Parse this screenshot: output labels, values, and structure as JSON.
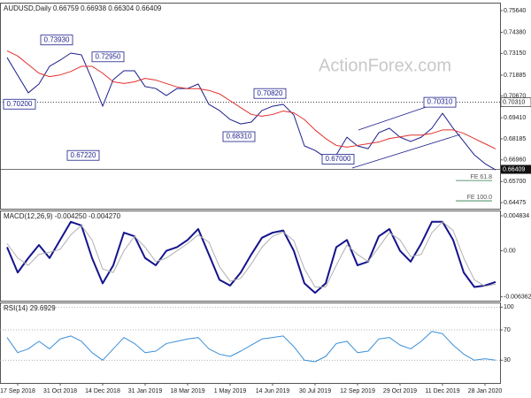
{
  "chart_data": [
    {
      "type": "line",
      "title": "AUDUSD,Daily  0.66759 0.66938 0.66304 0.66409",
      "watermark": "ActionForex.com",
      "series": [
        {
          "color": "#1c1f8a",
          "values": [
            0.7291,
            0.7188,
            0.7086,
            0.7137,
            0.724,
            0.7276,
            0.7317,
            0.7307,
            0.7163,
            0.7008,
            0.7163,
            0.7214,
            0.7214,
            0.7122,
            0.7111,
            0.707,
            0.7111,
            0.7111,
            0.7137,
            0.7019,
            0.6983,
            0.6931,
            0.6905,
            0.6916,
            0.6983,
            0.7008,
            0.7019,
            0.6957,
            0.6777,
            0.6751,
            0.671,
            0.6725,
            0.6828,
            0.6777,
            0.6761,
            0.6854,
            0.688,
            0.6828,
            0.6803,
            0.6828,
            0.688,
            0.6967,
            0.688,
            0.6803,
            0.6725,
            0.6674,
            0.6638
          ]
        },
        {
          "color": "#e0302c",
          "values": [
            0.733,
            0.73,
            0.725,
            0.72,
            0.718,
            0.719,
            0.721,
            0.724,
            0.724,
            0.72,
            0.715,
            0.714,
            0.715,
            0.717,
            0.716,
            0.714,
            0.712,
            0.711,
            0.711,
            0.71,
            0.708,
            0.704,
            0.7,
            0.696,
            0.695,
            0.696,
            0.698,
            0.697,
            0.693,
            0.687,
            0.682,
            0.678,
            0.677,
            0.678,
            0.679,
            0.68,
            0.682,
            0.683,
            0.684,
            0.684,
            0.685,
            0.687,
            0.687,
            0.685,
            0.682,
            0.679,
            0.676
          ]
        }
      ],
      "ylim": [
        0.6412,
        0.7605
      ],
      "yticks": [
        {
          "value": 0.7564,
          "label": "0.75640"
        },
        {
          "value": 0.7438,
          "label": "0.74380"
        },
        {
          "value": 0.7315,
          "label": "0.73150"
        },
        {
          "value": 0.71885,
          "label": "0.71885"
        },
        {
          "value": 0.7067,
          "label": "0.70670"
        },
        {
          "value": 0.6941,
          "label": "0.69410"
        },
        {
          "value": 0.68185,
          "label": "0.68185"
        },
        {
          "value": 0.6696,
          "label": "0.66960"
        },
        {
          "value": 0.657,
          "label": "0.65700"
        },
        {
          "value": 0.64475,
          "label": "0.64475"
        }
      ],
      "level": {
        "value": 0.7031,
        "label": "0.70310"
      },
      "last_price": 0.66409,
      "annotations": [
        {
          "value": 0.7393,
          "label": "0.73930",
          "index": 6
        },
        {
          "value": 0.7295,
          "label": "0.72950",
          "index": 11
        },
        {
          "value": 0.702,
          "label": "0.70200",
          "index": 2
        },
        {
          "value": 0.6722,
          "label": "0.67220",
          "index": 9
        },
        {
          "value": 0.7082,
          "label": "0.70820",
          "index": 26
        },
        {
          "value": 0.6831,
          "label": "0.68310",
          "index": 24
        },
        {
          "value": 0.67,
          "label": "0.67000",
          "index": 31
        },
        {
          "value": 0.7031,
          "label": "0.70310",
          "index": 41
        }
      ],
      "fe_levels": [
        {
          "value": 0.6576,
          "label": "FE 61.8"
        },
        {
          "value": 0.6458,
          "label": "FE 100.0"
        }
      ]
    },
    {
      "type": "line",
      "title": "MACD(12,26,9) -0.004250 -0.004270",
      "series": [
        {
          "color": "#14148c",
          "values": [
            0.0005,
            -0.003,
            -0.001,
            0.0008,
            -0.001,
            0.0015,
            0.004,
            0.0035,
            -0.001,
            -0.0045,
            -0.002,
            0.0025,
            0.002,
            -0.001,
            -0.002,
            0.0,
            0.0005,
            0.0015,
            0.003,
            -0.0005,
            -0.004,
            -0.0048,
            -0.003,
            -0.0005,
            0.0018,
            0.0025,
            0.0028,
            0.0,
            -0.0045,
            -0.0058,
            -0.0045,
            0.0005,
            0.0015,
            -0.002,
            -0.0015,
            0.002,
            0.003,
            0.0,
            -0.0015,
            0.001,
            0.004,
            0.004,
            0.0015,
            -0.003,
            -0.005,
            -0.0048,
            -0.0043
          ]
        },
        {
          "color": "#b0b0b0",
          "values": [
            0.001,
            -0.001,
            -0.002,
            -0.0005,
            -0.0002,
            0.0002,
            0.0022,
            0.0035,
            0.0015,
            -0.0025,
            -0.003,
            0.0,
            0.002,
            0.0005,
            -0.0015,
            -0.001,
            0.0,
            0.001,
            0.0022,
            0.0012,
            -0.0022,
            -0.0042,
            -0.0038,
            -0.0018,
            0.0005,
            0.002,
            0.0026,
            0.0014,
            -0.0025,
            -0.005,
            -0.005,
            -0.002,
            0.0008,
            -0.0005,
            -0.0015,
            0.0005,
            0.0025,
            0.0015,
            -0.0008,
            -0.0005,
            0.0025,
            0.004,
            0.0028,
            -0.001,
            -0.004,
            -0.0049,
            -0.0046
          ]
        }
      ],
      "ylim": [
        -0.00689,
        0.00544
      ],
      "yticks": [
        0.004834,
        {
          "value": 0,
          "label": "0.00"
        },
        -0.006362
      ],
      "grid": false
    },
    {
      "type": "line",
      "title": "RSI(14) 29.6929",
      "categories": [
        null,
        "17 Sep 2018",
        null,
        null,
        null,
        "31 Oct 2018",
        null,
        null,
        null,
        "14 Dec 2018",
        null,
        null,
        null,
        "31 Jan 2019",
        null,
        null,
        null,
        "18 Mar 2019",
        null,
        null,
        null,
        "1 May 2019",
        null,
        null,
        null,
        "14 Jun 2019",
        null,
        null,
        null,
        "30 Jul 2019",
        null,
        null,
        null,
        "12 Sep 2019",
        null,
        null,
        null,
        "29 Oct 2019",
        null,
        null,
        null,
        "11 Dec 2019",
        null,
        null,
        null,
        "28 Jan 2020",
        null
      ],
      "series": [
        {
          "color": "#3a8fd8",
          "values": [
            60,
            40,
            45,
            55,
            45,
            58,
            62,
            55,
            40,
            30,
            45,
            60,
            52,
            40,
            42,
            52,
            55,
            58,
            60,
            45,
            38,
            35,
            42,
            50,
            58,
            60,
            62,
            48,
            30,
            28,
            35,
            52,
            55,
            40,
            42,
            58,
            60,
            50,
            45,
            55,
            68,
            65,
            50,
            38,
            30,
            32,
            30
          ]
        }
      ],
      "ylim": [
        0,
        105
      ],
      "yticks": [
        100,
        70,
        30
      ],
      "grid": true
    }
  ]
}
